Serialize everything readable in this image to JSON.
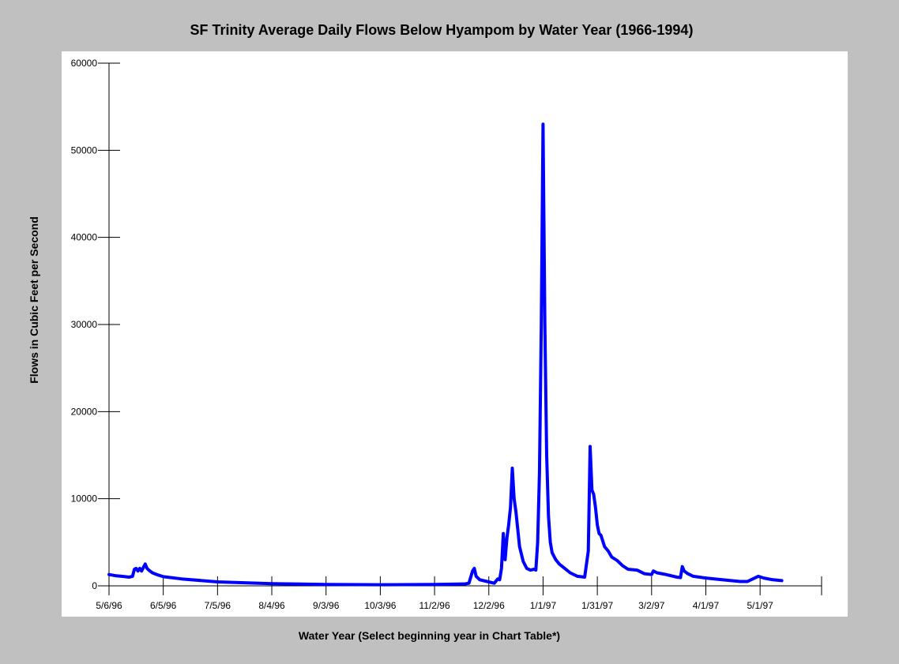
{
  "chart_data": {
    "type": "line",
    "title": "SF Trinity Average Daily Flows Below Hyampom by Water Year (1966-1994)",
    "xlabel": "Water Year (Select beginning year in Chart Table*)",
    "ylabel": "Flows in Cubic Feet per Second",
    "ylim": [
      0,
      60000
    ],
    "yticks": [
      "0",
      "10000",
      "20000",
      "30000",
      "40000",
      "50000",
      "60000"
    ],
    "xlim": [
      "1996-05-06",
      "1997-06-04"
    ],
    "xticks": [
      "5/6/96",
      "6/5/96",
      "7/5/96",
      "8/4/96",
      "9/3/96",
      "10/3/96",
      "11/2/96",
      "12/2/96",
      "1/1/97",
      "1/31/97",
      "3/2/97",
      "4/1/97",
      "5/1/97"
    ],
    "grid": false,
    "legend": "none",
    "series": [
      {
        "color": "#0000ff",
        "points": [
          [
            "1996-05-06",
            1300
          ],
          [
            "1996-05-10",
            1150
          ],
          [
            "1996-05-15",
            1050
          ],
          [
            "1996-05-17",
            1000
          ],
          [
            "1996-05-19",
            1100
          ],
          [
            "1996-05-20",
            1900
          ],
          [
            "1996-05-21",
            2000
          ],
          [
            "1996-05-22",
            1700
          ],
          [
            "1996-05-23",
            2000
          ],
          [
            "1996-05-24",
            1700
          ],
          [
            "1996-05-25",
            2100
          ],
          [
            "1996-05-26",
            2500
          ],
          [
            "1996-05-27",
            2000
          ],
          [
            "1996-05-28",
            1800
          ],
          [
            "1996-05-30",
            1500
          ],
          [
            "1996-06-02",
            1250
          ],
          [
            "1996-06-05",
            1050
          ],
          [
            "1996-06-15",
            800
          ],
          [
            "1996-07-05",
            450
          ],
          [
            "1996-08-04",
            250
          ],
          [
            "1996-09-03",
            150
          ],
          [
            "1996-10-03",
            130
          ],
          [
            "1996-11-02",
            150
          ],
          [
            "1996-11-15",
            200
          ],
          [
            "1996-11-19",
            230
          ],
          [
            "1996-11-21",
            300
          ],
          [
            "1996-11-22",
            1000
          ],
          [
            "1996-11-23",
            1700
          ],
          [
            "1996-11-24",
            2000
          ],
          [
            "1996-11-25",
            1100
          ],
          [
            "1996-11-27",
            700
          ],
          [
            "1996-12-01",
            500
          ],
          [
            "1996-12-03",
            400
          ],
          [
            "1996-12-05",
            300
          ],
          [
            "1996-12-07",
            800
          ],
          [
            "1996-12-08",
            700
          ],
          [
            "1996-12-09",
            2000
          ],
          [
            "1996-12-10",
            6000
          ],
          [
            "1996-12-11",
            3000
          ],
          [
            "1996-12-12",
            5500
          ],
          [
            "1996-12-13",
            7000
          ],
          [
            "1996-12-14",
            9000
          ],
          [
            "1996-12-15",
            13500
          ],
          [
            "1996-12-16",
            10000
          ],
          [
            "1996-12-17",
            8500
          ],
          [
            "1996-12-18",
            6500
          ],
          [
            "1996-12-19",
            4500
          ],
          [
            "1996-12-21",
            2800
          ],
          [
            "1996-12-23",
            2000
          ],
          [
            "1996-12-25",
            1800
          ],
          [
            "1996-12-27",
            1900
          ],
          [
            "1996-12-28",
            1800
          ],
          [
            "1996-12-29",
            5000
          ],
          [
            "1996-12-30",
            13000
          ],
          [
            "1996-12-31",
            30000
          ],
          [
            "1997-01-01",
            53000
          ],
          [
            "1997-01-02",
            30000
          ],
          [
            "1997-01-03",
            15000
          ],
          [
            "1997-01-04",
            8000
          ],
          [
            "1997-01-05",
            5000
          ],
          [
            "1997-01-06",
            3800
          ],
          [
            "1997-01-08",
            3000
          ],
          [
            "1997-01-10",
            2500
          ],
          [
            "1997-01-13",
            2000
          ],
          [
            "1997-01-16",
            1500
          ],
          [
            "1997-01-20",
            1100
          ],
          [
            "1997-01-24",
            1000
          ],
          [
            "1997-01-26",
            4000
          ],
          [
            "1997-01-27",
            16000
          ],
          [
            "1997-01-28",
            11000
          ],
          [
            "1997-01-29",
            10500
          ],
          [
            "1997-01-30",
            9000
          ],
          [
            "1997-01-31",
            7000
          ],
          [
            "1997-02-01",
            6000
          ],
          [
            "1997-02-02",
            5800
          ],
          [
            "1997-02-04",
            4500
          ],
          [
            "1997-02-06",
            4000
          ],
          [
            "1997-02-08",
            3300
          ],
          [
            "1997-02-11",
            2900
          ],
          [
            "1997-02-14",
            2300
          ],
          [
            "1997-02-17",
            1900
          ],
          [
            "1997-02-22",
            1800
          ],
          [
            "1997-02-26",
            1400
          ],
          [
            "1997-03-02",
            1300
          ],
          [
            "1997-03-03",
            1700
          ],
          [
            "1997-03-05",
            1500
          ],
          [
            "1997-03-10",
            1300
          ],
          [
            "1997-03-16",
            1000
          ],
          [
            "1997-03-18",
            950
          ],
          [
            "1997-03-19",
            2200
          ],
          [
            "1997-03-20",
            1700
          ],
          [
            "1997-03-22",
            1400
          ],
          [
            "1997-03-25",
            1100
          ],
          [
            "1997-04-01",
            900
          ],
          [
            "1997-04-10",
            700
          ],
          [
            "1997-04-20",
            500
          ],
          [
            "1997-04-24",
            500
          ],
          [
            "1997-04-27",
            800
          ],
          [
            "1997-04-30",
            1100
          ],
          [
            "1997-05-03",
            900
          ],
          [
            "1997-05-08",
            700
          ],
          [
            "1997-05-13",
            600
          ]
        ]
      }
    ]
  }
}
